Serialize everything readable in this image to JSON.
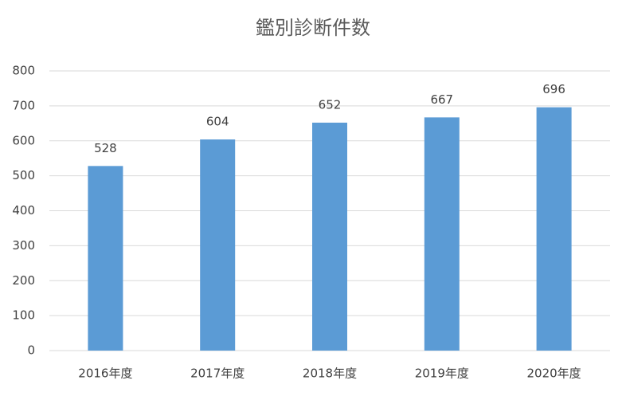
{
  "chart_data": {
    "type": "bar",
    "title": "鑑別診断件数",
    "categories": [
      "2016年度",
      "2017年度",
      "2018年度",
      "2019年度",
      "2020年度"
    ],
    "values": [
      528,
      604,
      652,
      667,
      696
    ],
    "color": "#5b9bd5",
    "ylim": [
      0,
      800
    ],
    "yticks": [
      0,
      100,
      200,
      300,
      400,
      500,
      600,
      700,
      800
    ],
    "grid": true
  }
}
